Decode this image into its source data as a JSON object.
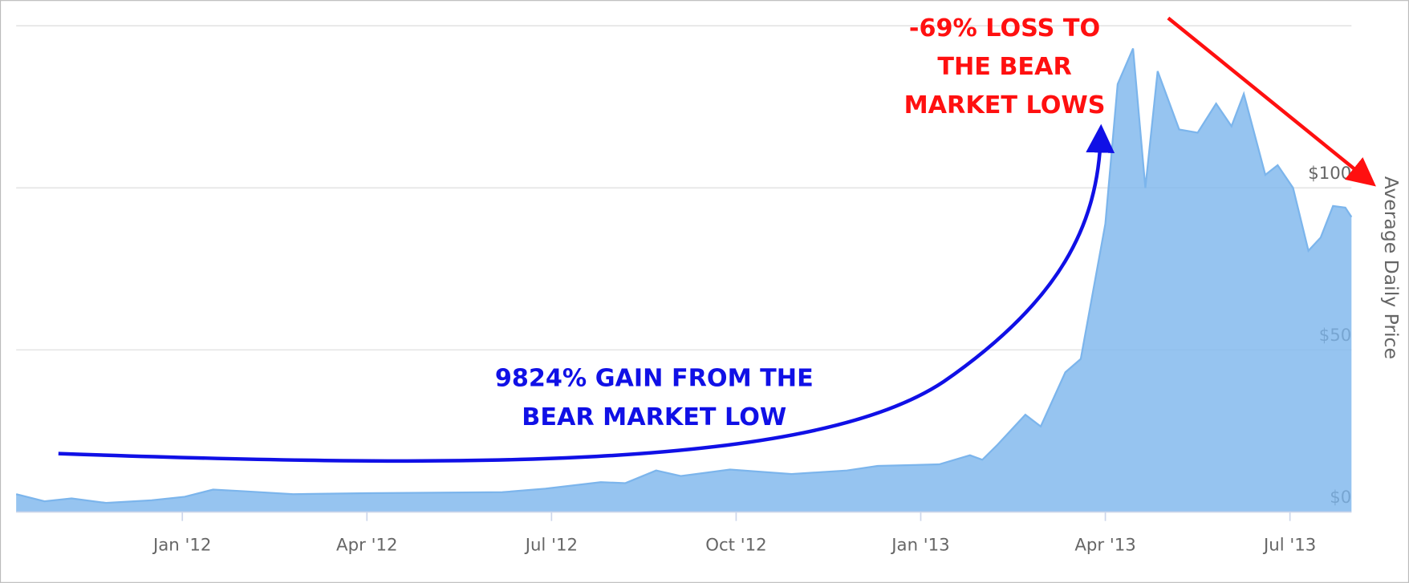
{
  "chart_data": {
    "type": "area",
    "y_label": "Average Daily Price",
    "annotations": [
      {
        "lines": [
          "9824% GAIN FROM THE",
          "BEAR MARKET LOW"
        ],
        "color": "#1010e6"
      },
      {
        "lines": [
          "-69% LOSS TO",
          "THE BEAR",
          "MARKET LOWS"
        ],
        "color": "#ff1010"
      }
    ],
    "x": [
      -2.7,
      -2.24,
      -1.8,
      -1.24,
      -0.5,
      0.04,
      0.5,
      1.0,
      1.8,
      3.0,
      5.2,
      5.9,
      6.8,
      7.2,
      7.7,
      8.1,
      8.9,
      9.9,
      10.8,
      11.3,
      12.3,
      12.8,
      13.0,
      13.25,
      13.7,
      13.95,
      14.35,
      14.6,
      15.0,
      15.2,
      15.45,
      15.65,
      15.85,
      16.2,
      16.5,
      16.8,
      17.05,
      17.25,
      17.6,
      17.8,
      18.05,
      18.3,
      18.5,
      18.7,
      18.9,
      19.0
    ],
    "series": [
      {
        "name": "Average Daily Price",
        "color": "#7cb5ec",
        "values": [
          5.5,
          3.3,
          4.2,
          2.8,
          3.6,
          4.7,
          6.9,
          6.4,
          5.5,
          5.8,
          6.1,
          7.2,
          9.2,
          8.9,
          12.8,
          11.1,
          13.1,
          11.7,
          12.8,
          14.2,
          14.7,
          17.5,
          16.1,
          20.8,
          30,
          26.4,
          43.1,
          47.2,
          88.9,
          132,
          143,
          100,
          136,
          118,
          117,
          126,
          119,
          129,
          104,
          107,
          100,
          80.6,
          84.7,
          94.4,
          93.9,
          91
        ]
      }
    ],
    "xlim": [
      -2.7,
      19.0
    ],
    "xticks": [
      {
        "value": 0,
        "label": "Jan '12"
      },
      {
        "value": 3,
        "label": "Apr '12"
      },
      {
        "value": 6,
        "label": "Jul '12"
      },
      {
        "value": 9,
        "label": "Oct '12"
      },
      {
        "value": 12,
        "label": "Jan '13"
      },
      {
        "value": 15,
        "label": "Apr '13"
      },
      {
        "value": 18,
        "label": "Jul '13"
      }
    ],
    "ylim": [
      0,
      151
    ],
    "yticks": [
      {
        "value": 0,
        "label": "$0"
      },
      {
        "value": 50,
        "label": "$50"
      },
      {
        "value": 100,
        "label": "$100"
      },
      {
        "value": 150,
        "label": ""
      }
    ],
    "grid": true
  }
}
